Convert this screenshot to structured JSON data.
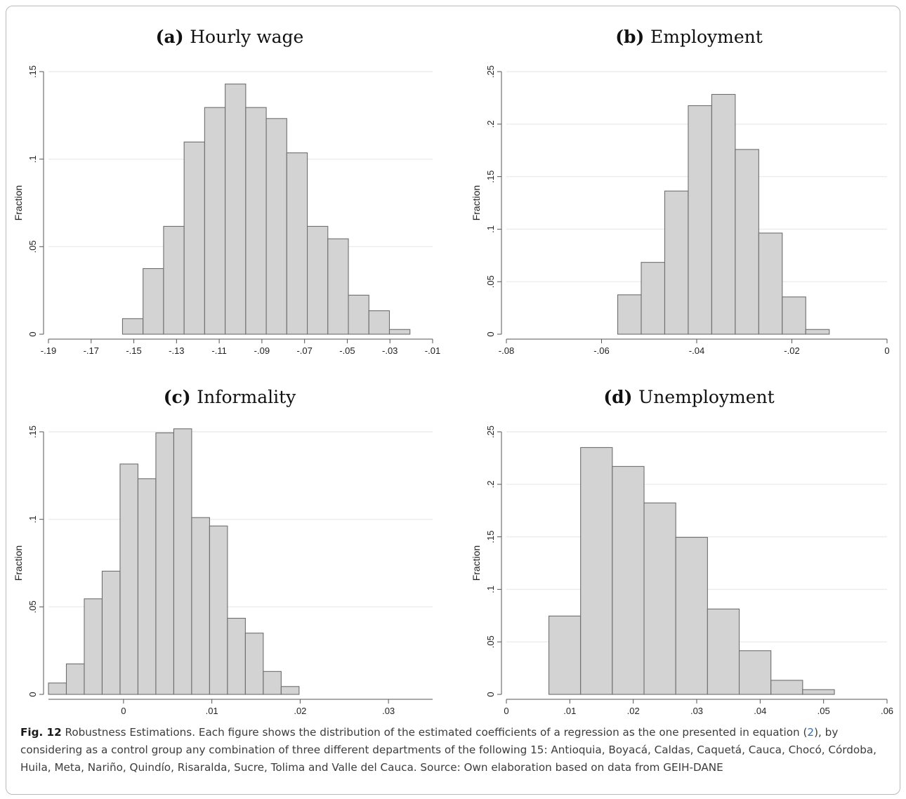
{
  "figure": {
    "caption_label": "Fig. 12",
    "caption_text_1": " Robustness Estimations. Each figure shows the distribution of the estimated coefficients of a regression as the one presented in equation (",
    "caption_equation_ref": "2",
    "caption_text_2": "), by considering as a control group any combination of three different departments of the following 15: Antioquia, Boyacá, Caldas, Caquetá, Cauca, Chocó, Córdoba, Huila, Meta, Nariño, Quindío, Risaralda, Sucre, Tolima and Valle del Cauca. Source: Own elaboration based on data from GEIH-DANE"
  },
  "colors": {
    "bar_fill": "#d3d3d3",
    "bar_stroke": "#6e6e6e",
    "grid": "#ececec",
    "axis": "#555555",
    "link": "#2f6fb5"
  },
  "chart_data": [
    {
      "type": "bar",
      "panel_letter": "(a)",
      "title": "Hourly wage",
      "ylabel": "Fraction",
      "xlabel": "",
      "xlim": [
        -0.19,
        -0.01
      ],
      "ylim": [
        0,
        0.15
      ],
      "x_ticks": [
        -0.19,
        -0.17,
        -0.15,
        -0.13,
        -0.11,
        -0.09,
        -0.07,
        -0.05,
        -0.03,
        -0.01
      ],
      "x_tick_labels": [
        "-.19",
        "-.17",
        "-.15",
        "-.13",
        "-.11",
        "-.09",
        "-.07",
        "-.05",
        "-.03",
        "-.01"
      ],
      "y_ticks": [
        0,
        0.05,
        0.1,
        0.15
      ],
      "y_tick_labels": [
        "0",
        ".05",
        ".1",
        ".15"
      ],
      "grid": true,
      "bin_width": 0.00962,
      "bin_start": -0.1553,
      "values": [
        0.0089,
        0.0375,
        0.0616,
        0.1098,
        0.1295,
        0.1429,
        0.1295,
        0.1232,
        0.1036,
        0.0616,
        0.0545,
        0.0223,
        0.0134,
        0.0027
      ]
    },
    {
      "type": "bar",
      "panel_letter": "(b)",
      "title": "Employment",
      "ylabel": "Fraction",
      "xlabel": "",
      "xlim": [
        -0.08,
        0
      ],
      "ylim": [
        0,
        0.25
      ],
      "x_ticks": [
        -0.08,
        -0.06,
        -0.04,
        -0.02,
        0
      ],
      "x_tick_labels": [
        "-.08",
        "-.06",
        "-.04",
        "-.02",
        "0"
      ],
      "y_ticks": [
        0,
        0.05,
        0.1,
        0.15,
        0.2,
        0.25
      ],
      "y_tick_labels": [
        "0",
        ".05",
        ".1",
        ".15",
        ".2",
        ".25"
      ],
      "grid": true,
      "bin_width": 0.00494,
      "bin_start": -0.0566,
      "values": [
        0.0375,
        0.0684,
        0.1363,
        0.2176,
        0.2283,
        0.1759,
        0.0963,
        0.0355,
        0.0045
      ]
    },
    {
      "type": "bar",
      "panel_letter": "(c)",
      "title": "Informality",
      "ylabel": "Fraction",
      "xlabel": "",
      "xlim": [
        -0.0085,
        0.035
      ],
      "ylim": [
        0,
        0.15
      ],
      "x_ticks": [
        0,
        0.01,
        0.02,
        0.03
      ],
      "x_tick_labels": [
        "0",
        ".01",
        ".02",
        ".03"
      ],
      "y_ticks": [
        0,
        0.05,
        0.1,
        0.15
      ],
      "y_tick_labels": [
        "0",
        ".05",
        ".1",
        ".15"
      ],
      "grid": true,
      "bin_width": 0.002027,
      "bin_start": -0.0085,
      "values": [
        0.0065,
        0.0174,
        0.0546,
        0.0704,
        0.1316,
        0.1232,
        0.1494,
        0.1517,
        0.101,
        0.0962,
        0.0435,
        0.035,
        0.0131,
        0.0045
      ]
    },
    {
      "type": "bar",
      "panel_letter": "(d)",
      "title": "Unemployment",
      "ylabel": "Fraction",
      "xlabel": "",
      "xlim": [
        0,
        0.06
      ],
      "ylim": [
        0,
        0.25
      ],
      "x_ticks": [
        0,
        0.01,
        0.02,
        0.03,
        0.04,
        0.05,
        0.06
      ],
      "x_tick_labels": [
        "0",
        ".01",
        ".02",
        ".03",
        ".04",
        ".05",
        ".06"
      ],
      "y_ticks": [
        0,
        0.05,
        0.1,
        0.15,
        0.2,
        0.25
      ],
      "y_tick_labels": [
        "0",
        ".05",
        ".1",
        ".15",
        ".2",
        ".25"
      ],
      "grid": true,
      "bin_width": 0.005,
      "bin_start": 0.0067,
      "values": [
        0.0746,
        0.235,
        0.217,
        0.1823,
        0.1495,
        0.0813,
        0.0416,
        0.0134,
        0.0045
      ]
    }
  ]
}
